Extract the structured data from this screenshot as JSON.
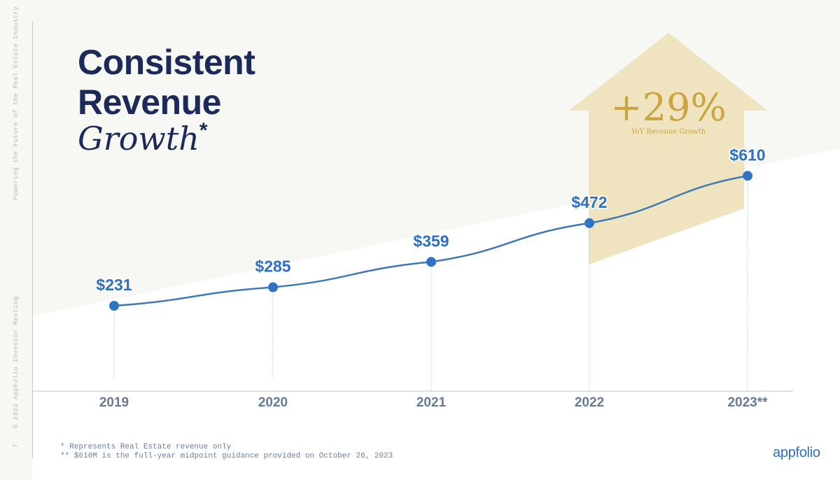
{
  "side_text": {
    "top": "Powering the Future of the Real Estate Industry",
    "bottom": "© 2023 AppFolio Investor Meeting",
    "page": "7"
  },
  "title": {
    "line1": "Consistent",
    "line2": "Revenue",
    "line3": "Growth",
    "marker": "*"
  },
  "callout": {
    "value": "+29%",
    "label": "YoY Revenue Growth"
  },
  "footnotes": {
    "note1": "* Represents Real Estate revenue only",
    "note2": "** $610M is the full-year midpoint guidance provided on October 26, 2023"
  },
  "logo": "appfolio",
  "colors": {
    "line": "#3f78b5",
    "point": "#2f74c4",
    "label": "#2e6fbf",
    "axis_label": "#687a96",
    "title": "#1b2a5a",
    "callout_fill": "#efe4bf",
    "callout_text": "#c9a441"
  },
  "chart_data": {
    "type": "line",
    "title": "Consistent Revenue Growth*",
    "xlabel": "",
    "ylabel": "",
    "categories": [
      "2019",
      "2020",
      "2021",
      "2022",
      "2023**"
    ],
    "values": [
      231,
      285,
      359,
      472,
      610
    ],
    "value_labels": [
      "$231",
      "$285",
      "$359",
      "$472",
      "$610"
    ],
    "ylim": [
      0,
      700
    ],
    "grid": false
  }
}
